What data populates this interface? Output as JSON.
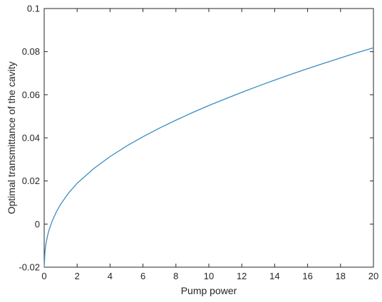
{
  "chart_data": {
    "type": "line",
    "title": "",
    "xlabel": "Pump power",
    "ylabel": "Optimal transmittance of the cavity",
    "xlim": [
      0,
      20
    ],
    "ylim": [
      -0.02,
      0.1
    ],
    "x_ticks": [
      0,
      2,
      4,
      6,
      8,
      10,
      12,
      14,
      16,
      18,
      20
    ],
    "x_tick_labels": [
      "0",
      "2",
      "4",
      "6",
      "8",
      "10",
      "12",
      "14",
      "16",
      "18",
      "20"
    ],
    "y_ticks": [
      -0.02,
      0,
      0.02,
      0.04,
      0.06,
      0.08,
      0.1
    ],
    "y_tick_labels": [
      "-0.02",
      "0",
      "0.02",
      "0.04",
      "0.06",
      "0.08",
      "0.1"
    ],
    "grid": false,
    "series": [
      {
        "color": "#3a8dc4",
        "x": [
          0,
          0.05,
          0.1,
          0.2,
          0.3,
          0.5,
          0.75,
          1,
          1.5,
          2,
          3,
          4,
          5,
          6,
          7,
          8,
          9,
          10,
          11,
          12,
          13,
          14,
          15,
          16,
          17,
          18,
          19,
          20
        ],
        "y": [
          -0.02,
          -0.0125,
          -0.0094,
          -0.0055,
          -0.0026,
          0.0017,
          0.0058,
          0.0092,
          0.0146,
          0.0189,
          0.0257,
          0.0313,
          0.0362,
          0.0405,
          0.0445,
          0.0482,
          0.0517,
          0.055,
          0.0581,
          0.0611,
          0.064,
          0.0668,
          0.0695,
          0.0721,
          0.0746,
          0.0771,
          0.0795,
          0.0818
        ]
      }
    ]
  }
}
